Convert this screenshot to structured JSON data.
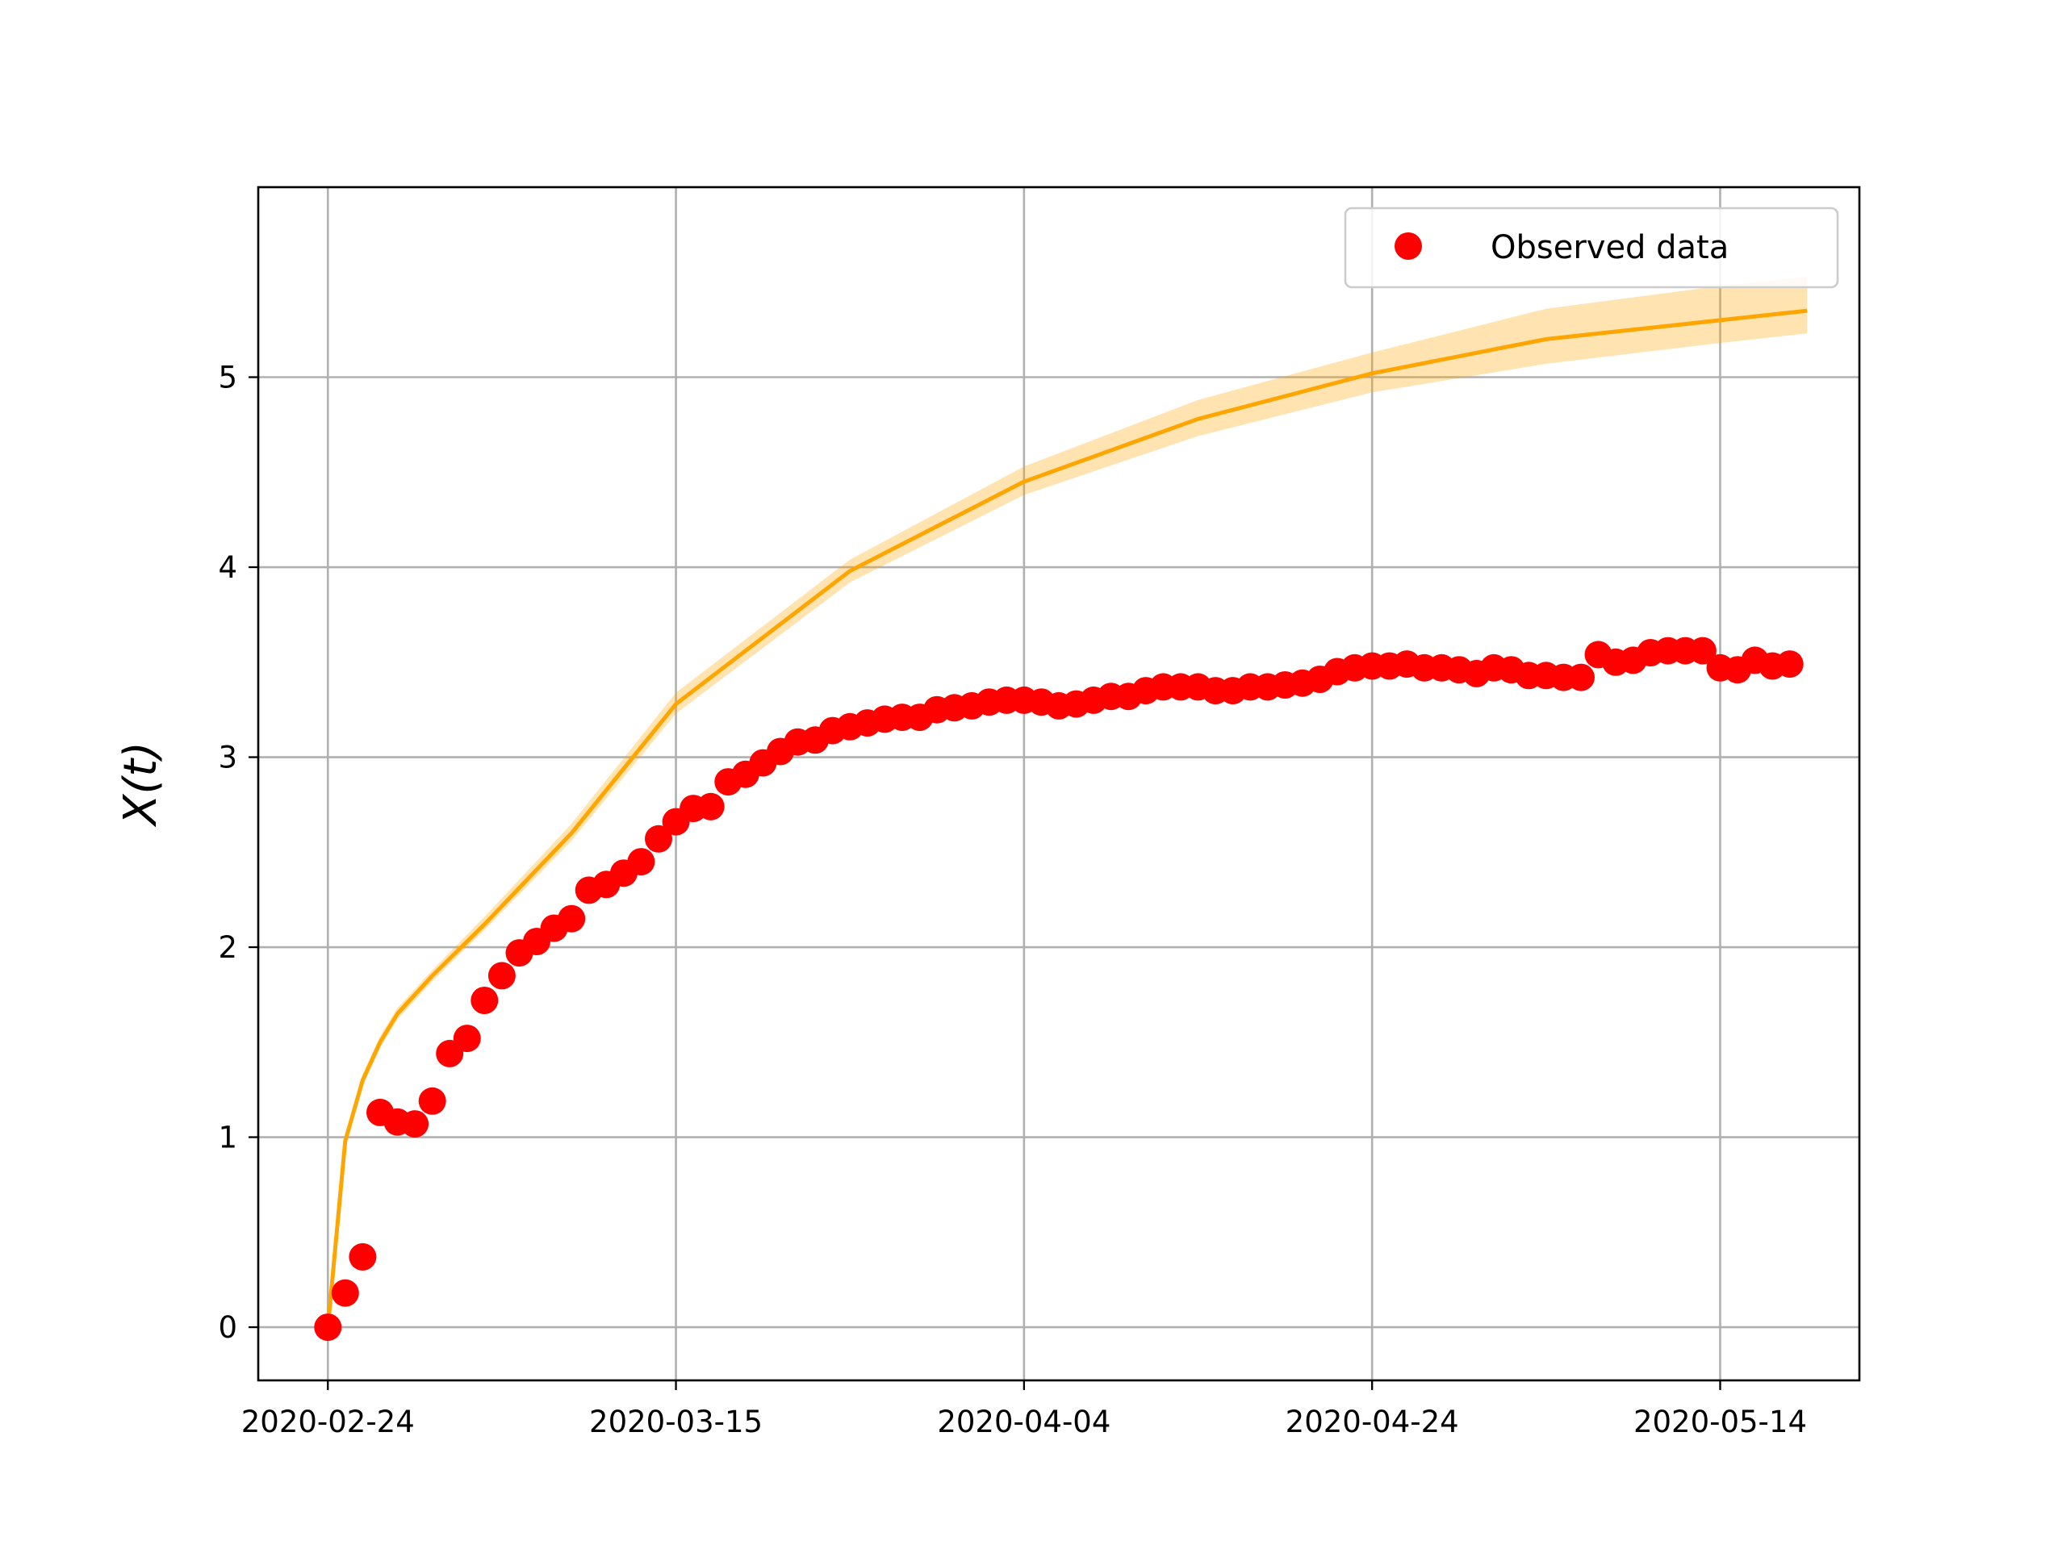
{
  "chart_data": {
    "type": "scatter",
    "title": "",
    "xlabel": "",
    "ylabel": "X(t)",
    "x_axis_type": "date",
    "xlim": [
      "2020-02-20",
      "2020-05-22"
    ],
    "ylim": [
      -0.28,
      6.0
    ],
    "x_ticks": [
      "2020-02-24",
      "2020-03-15",
      "2020-04-04",
      "2020-04-24",
      "2020-05-14"
    ],
    "y_ticks": [
      0,
      1,
      2,
      3,
      4,
      5
    ],
    "grid": true,
    "legend": {
      "position": "top-right",
      "entries": [
        "Observed data"
      ]
    },
    "colors": {
      "observed": "#ff0000",
      "model_line": "#ffa500",
      "model_band": "#ffa500"
    },
    "series": [
      {
        "name": "Observed data",
        "kind": "scatter",
        "x": [
          "2020-02-24",
          "2020-02-25",
          "2020-02-26",
          "2020-02-27",
          "2020-02-28",
          "2020-02-29",
          "2020-03-01",
          "2020-03-02",
          "2020-03-03",
          "2020-03-04",
          "2020-03-05",
          "2020-03-06",
          "2020-03-07",
          "2020-03-08",
          "2020-03-09",
          "2020-03-10",
          "2020-03-11",
          "2020-03-12",
          "2020-03-13",
          "2020-03-14",
          "2020-03-15",
          "2020-03-16",
          "2020-03-17",
          "2020-03-18",
          "2020-03-19",
          "2020-03-20",
          "2020-03-21",
          "2020-03-22",
          "2020-03-23",
          "2020-03-24",
          "2020-03-25",
          "2020-03-26",
          "2020-03-27",
          "2020-03-28",
          "2020-03-29",
          "2020-03-30",
          "2020-03-31",
          "2020-04-01",
          "2020-04-02",
          "2020-04-03",
          "2020-04-04",
          "2020-04-05",
          "2020-04-06",
          "2020-04-07",
          "2020-04-08",
          "2020-04-09",
          "2020-04-10",
          "2020-04-11",
          "2020-04-12",
          "2020-04-13",
          "2020-04-14",
          "2020-04-15",
          "2020-04-16",
          "2020-04-17",
          "2020-04-18",
          "2020-04-19",
          "2020-04-20",
          "2020-04-21",
          "2020-04-22",
          "2020-04-23",
          "2020-04-24",
          "2020-04-25",
          "2020-04-26",
          "2020-04-27",
          "2020-04-28",
          "2020-04-29",
          "2020-04-30",
          "2020-05-01",
          "2020-05-02",
          "2020-05-03",
          "2020-05-04",
          "2020-05-05",
          "2020-05-06",
          "2020-05-07",
          "2020-05-08",
          "2020-05-09",
          "2020-05-10",
          "2020-05-11",
          "2020-05-12",
          "2020-05-13",
          "2020-05-14",
          "2020-05-15",
          "2020-05-16",
          "2020-05-17",
          "2020-05-18"
        ],
        "y": [
          0.0,
          0.18,
          0.37,
          1.13,
          1.08,
          1.07,
          1.19,
          1.44,
          1.52,
          1.72,
          1.85,
          1.97,
          2.03,
          2.1,
          2.15,
          2.3,
          2.33,
          2.39,
          2.45,
          2.57,
          2.66,
          2.73,
          2.74,
          2.87,
          2.91,
          2.97,
          3.03,
          3.08,
          3.09,
          3.14,
          3.16,
          3.18,
          3.2,
          3.21,
          3.21,
          3.25,
          3.26,
          3.27,
          3.29,
          3.3,
          3.3,
          3.29,
          3.27,
          3.28,
          3.3,
          3.32,
          3.32,
          3.35,
          3.37,
          3.37,
          3.37,
          3.35,
          3.35,
          3.37,
          3.37,
          3.38,
          3.39,
          3.41,
          3.45,
          3.47,
          3.48,
          3.48,
          3.49,
          3.47,
          3.47,
          3.46,
          3.44,
          3.47,
          3.46,
          3.43,
          3.43,
          3.42,
          3.42,
          3.54,
          3.5,
          3.51,
          3.55,
          3.56,
          3.56,
          3.56,
          3.47,
          3.46,
          3.51,
          3.48,
          3.49
        ]
      },
      {
        "kind": "line",
        "x": [
          "2020-02-24",
          "2020-02-25",
          "2020-02-26",
          "2020-02-27",
          "2020-02-28",
          "2020-03-01",
          "2020-03-04",
          "2020-03-09",
          "2020-03-15",
          "2020-03-25",
          "2020-04-04",
          "2020-04-14",
          "2020-04-24",
          "2020-05-04",
          "2020-05-14",
          "2020-05-19"
        ],
        "y": [
          0.0,
          0.98,
          1.3,
          1.5,
          1.65,
          1.85,
          2.12,
          2.6,
          3.28,
          3.98,
          4.45,
          4.78,
          5.02,
          5.2,
          5.3,
          5.35
        ],
        "band_upper": [
          0.0,
          1.01,
          1.33,
          1.53,
          1.68,
          1.88,
          2.16,
          2.65,
          3.34,
          4.04,
          4.53,
          4.88,
          5.13,
          5.36,
          5.48,
          5.53
        ],
        "band_lower": [
          0.0,
          0.95,
          1.27,
          1.47,
          1.62,
          1.82,
          2.09,
          2.56,
          3.23,
          3.92,
          4.38,
          4.69,
          4.92,
          5.07,
          5.18,
          5.23
        ]
      }
    ]
  }
}
